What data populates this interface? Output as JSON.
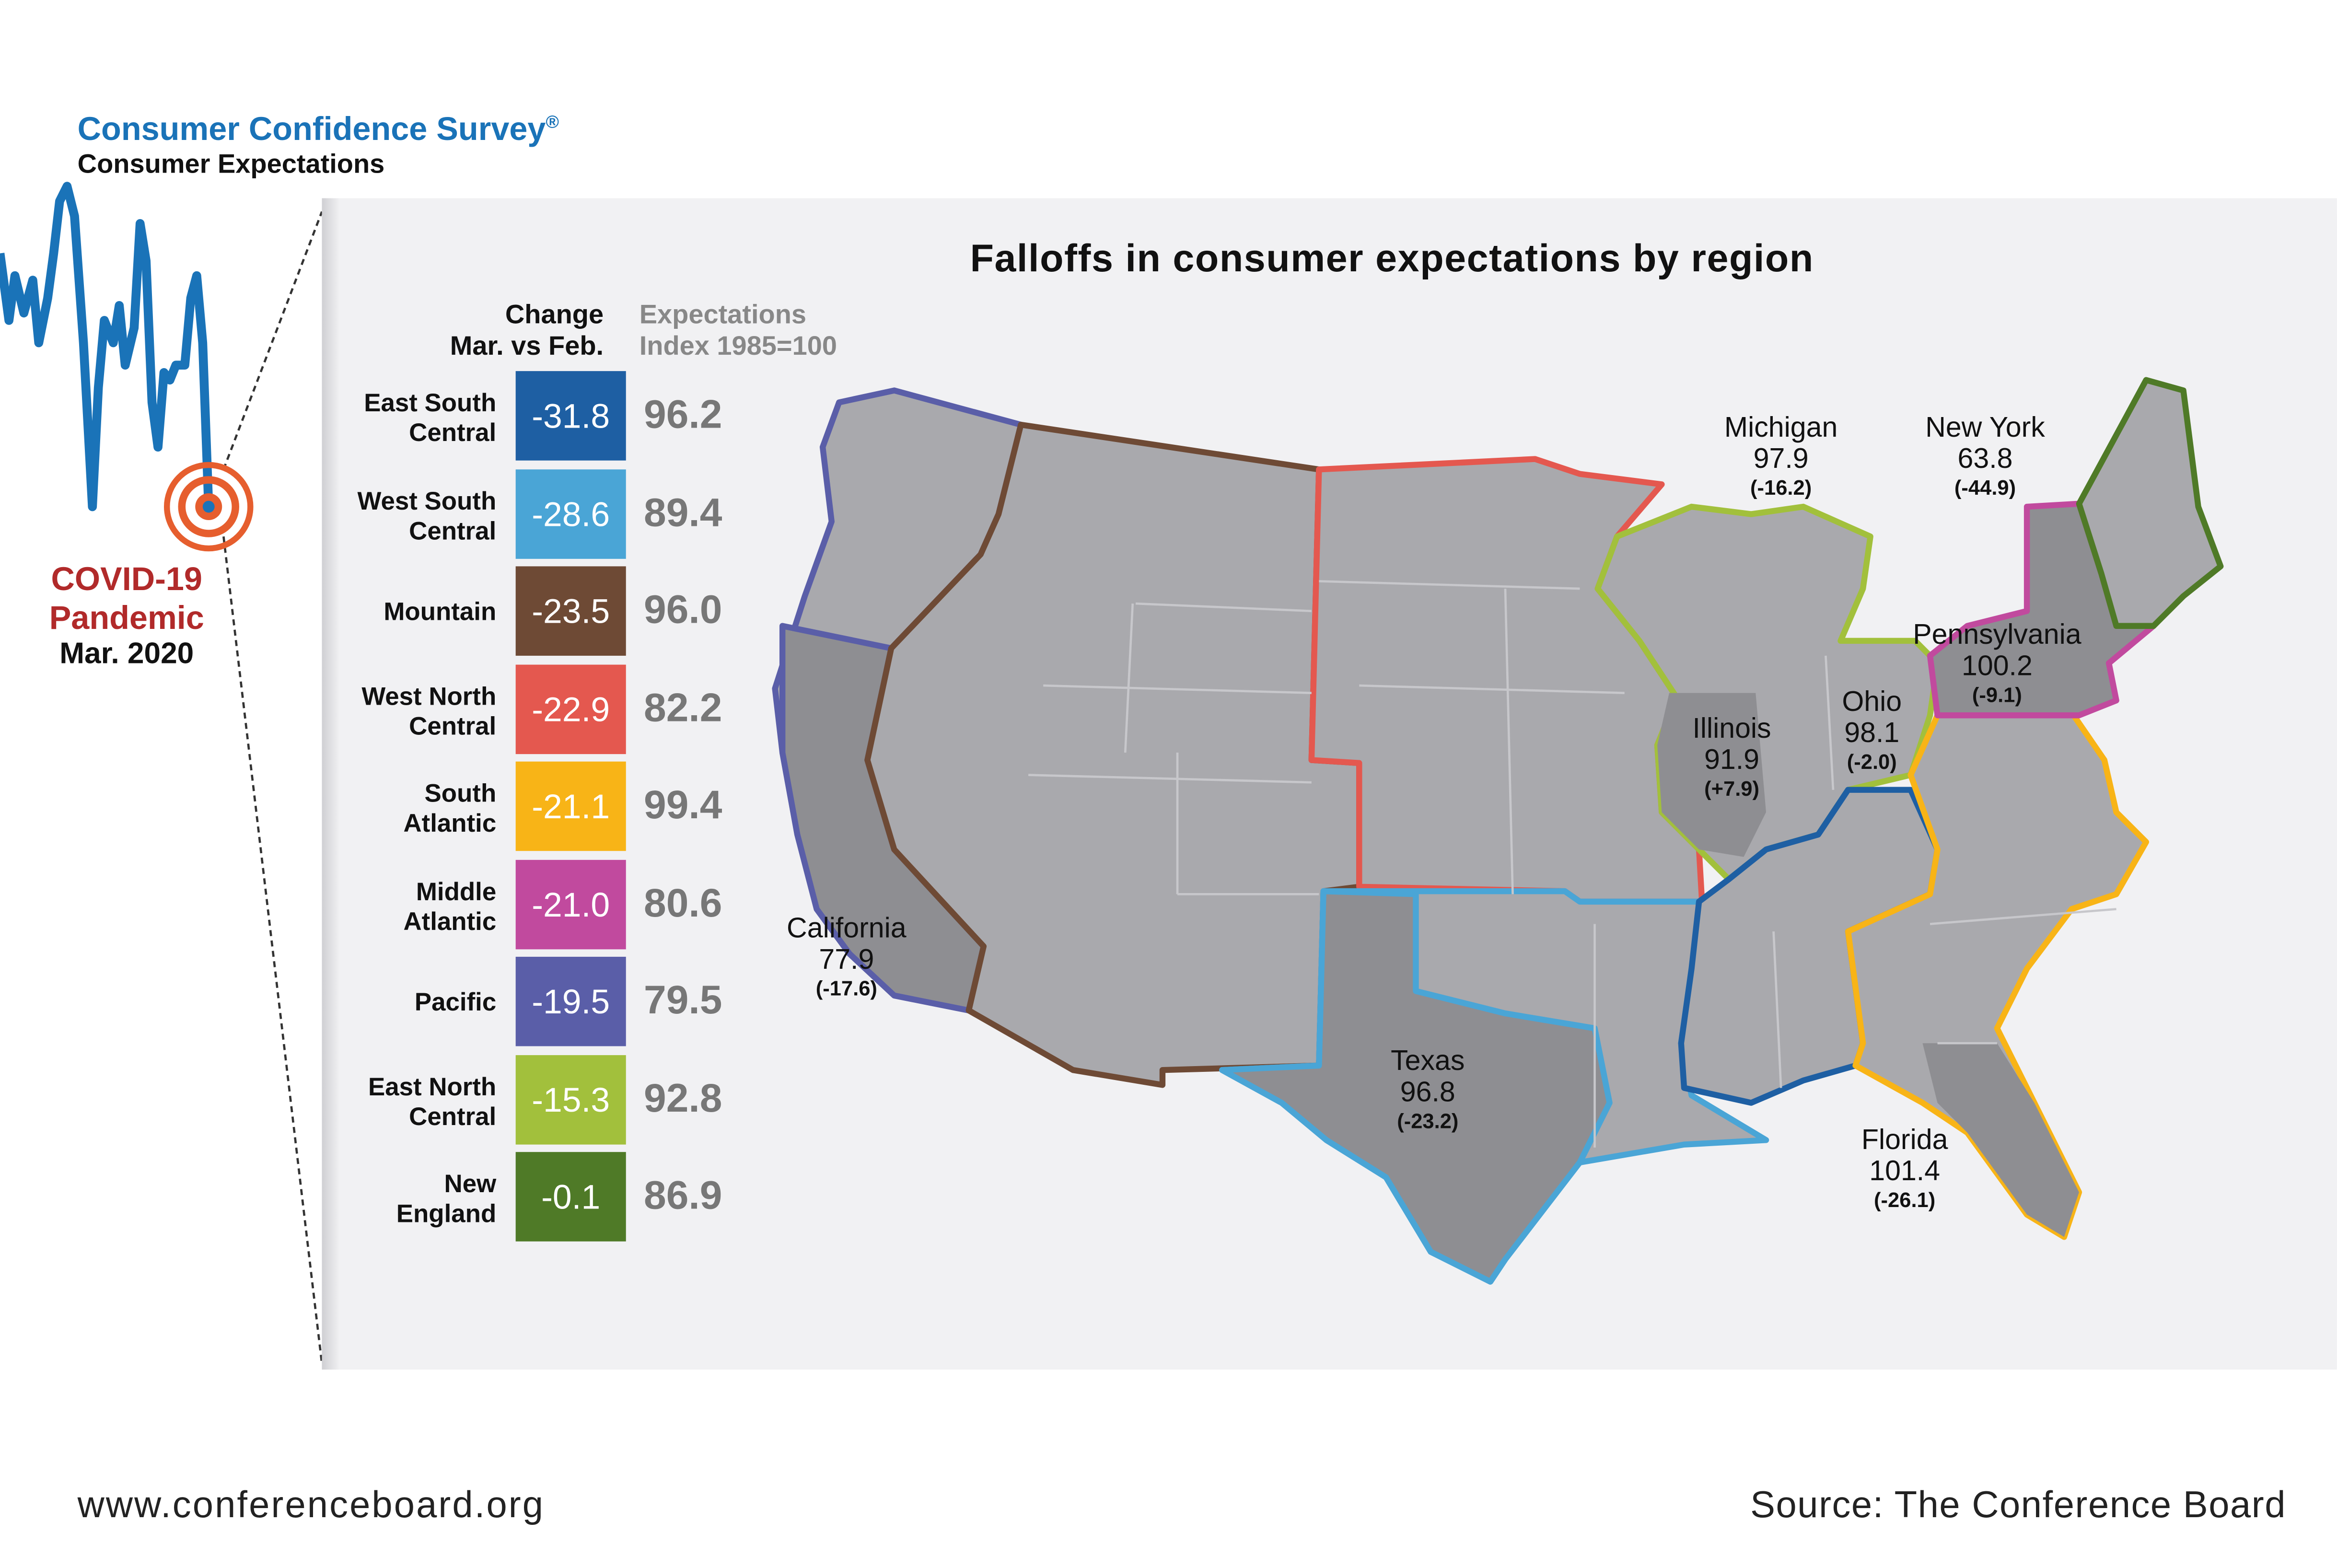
{
  "header": {
    "brand": "Consumer Confidence Survey",
    "brand_mark": "®",
    "subtitle": "Consumer Expectations"
  },
  "title": "Falloffs in consumer expectations by region",
  "covid_marker": {
    "line1": "COVID-19",
    "line2": "Pandemic",
    "line3": "Mar. 2020"
  },
  "table": {
    "change_header_1": "Change",
    "change_header_2": "Mar. vs Feb.",
    "index_header_1": "Expectations",
    "index_header_2": "Index 1985=100",
    "rows": [
      {
        "label1": "East South",
        "label2": "Central",
        "change": "-31.8",
        "index": "96.2",
        "color": "#1e5fa3"
      },
      {
        "label1": "West South",
        "label2": "Central",
        "change": "-28.6",
        "index": "89.4",
        "color": "#4aa5d6"
      },
      {
        "label1": "Mountain",
        "label2": "",
        "change": "-23.5",
        "index": "96.0",
        "color": "#6e4a35"
      },
      {
        "label1": "West North",
        "label2": "Central",
        "change": "-22.9",
        "index": "82.2",
        "color": "#e4584f"
      },
      {
        "label1": "South",
        "label2": "Atlantic",
        "change": "-21.1",
        "index": "99.4",
        "color": "#f8b417"
      },
      {
        "label1": "Middle",
        "label2": "Atlantic",
        "change": "-21.0",
        "index": "80.6",
        "color": "#c14a9e"
      },
      {
        "label1": "Pacific",
        "label2": "",
        "change": "-19.5",
        "index": "79.5",
        "color": "#5a5ea8"
      },
      {
        "label1": "East North",
        "label2": "Central",
        "change": "-15.3",
        "index": "92.8",
        "color": "#a2c03c"
      },
      {
        "label1": "New",
        "label2": "England",
        "change": "-0.1",
        "index": "86.9",
        "color": "#4f7a27"
      }
    ]
  },
  "states": [
    {
      "name": "Michigan",
      "value": "97.9",
      "change": "(-16.2)"
    },
    {
      "name": "New York",
      "value": "63.8",
      "change": "(-44.9)"
    },
    {
      "name": "Pennsylvania",
      "value": "100.2",
      "change": "(-9.1)"
    },
    {
      "name": "Illinois",
      "value": "91.9",
      "change": "(+7.9)"
    },
    {
      "name": "Ohio",
      "value": "98.1",
      "change": "(-2.0)"
    },
    {
      "name": "California",
      "value": "77.9",
      "change": "(-17.6)"
    },
    {
      "name": "Texas",
      "value": "96.8",
      "change": "(-23.2)"
    },
    {
      "name": "Florida",
      "value": "101.4",
      "change": "(-26.1)"
    }
  ],
  "footer": {
    "url": "www.conferenceboard.org",
    "source": "Source: The Conference Board"
  },
  "colors": {
    "brand_blue": "#1a73b8",
    "covid_red": "#b12a2a",
    "map_fill": "#a9a9ad",
    "map_fill_dark": "#8e8e92"
  }
}
